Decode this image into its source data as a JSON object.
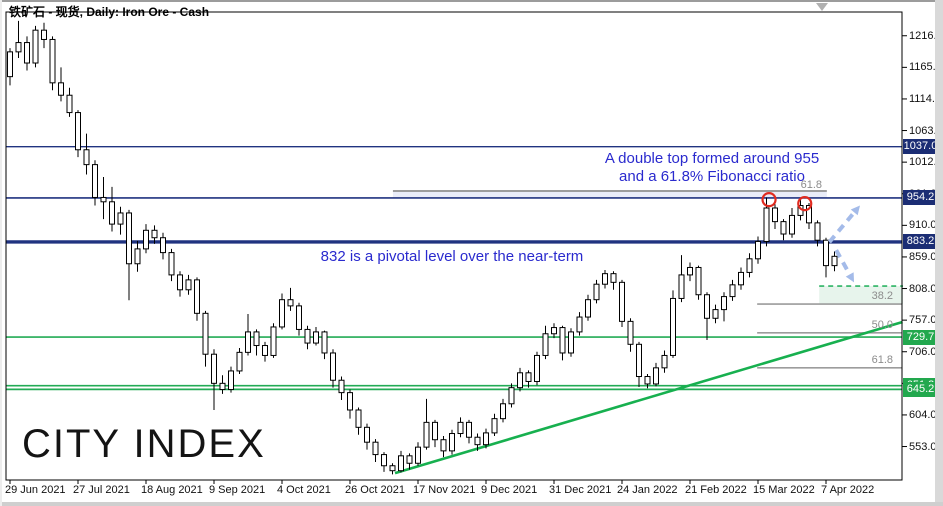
{
  "window": {
    "title": "铁矿石 - 现货, Daily:  Iron Ore - Cash"
  },
  "watermark": "CITY INDEX",
  "annotations": {
    "double_top_line1": "A double top formed around 955",
    "double_top_line2": "and a 61.8% Fibonacci ratio",
    "pivot": "832 is a pivotal level over the near-term"
  },
  "colors": {
    "line_navy": "#203380",
    "badge_navy": "#1b2d74",
    "line_green": "#22ab55",
    "badge_green": "#22a84e",
    "trend_green": "#17b04f",
    "dashed_green": "#2db464",
    "fib_gray": "#9c9c9c",
    "label_gray": "#8c8c8c",
    "annotation_blue": "#2a2ace",
    "arrow_blue": "#a4bbe9",
    "circle_red": "#e02b20",
    "shade_green": "#e7f4ec",
    "shade_blue": "#e9ecf8",
    "candle_stroke": "#000000",
    "candle_fill": "#ffffff"
  },
  "price_axis": {
    "ticks": [
      1216.0,
      1165.0,
      1114.0,
      1063.0,
      1012.0,
      961.0,
      910.0,
      859.0,
      808.0,
      757.0,
      706.0,
      655.0,
      604.0,
      553.0
    ],
    "badges": [
      {
        "label": "1037.0",
        "price": 1037.0,
        "style": "navy"
      },
      {
        "label": "954.2",
        "price": 954.2,
        "style": "navy"
      },
      {
        "label": "883.2",
        "price": 883.2,
        "style": "navy"
      },
      {
        "label": "729.7",
        "price": 729.7,
        "style": "green"
      },
      {
        "label": "651.2",
        "price": 651.2,
        "style": "green"
      },
      {
        "label": "645.2",
        "price": 645.2,
        "style": "green"
      }
    ]
  },
  "levels": [
    {
      "price": 1037.0,
      "color": "navy",
      "width": 1.4
    },
    {
      "price": 954.2,
      "color": "navy",
      "width": 1.7
    },
    {
      "price": 883.2,
      "color": "navy",
      "width": 3.4
    },
    {
      "price": 729.7,
      "color": "green",
      "width": 1.7
    },
    {
      "price": 651.2,
      "color": "green",
      "width": 1.7
    },
    {
      "price": 645.2,
      "color": "green",
      "width": 1.7
    }
  ],
  "fib_upper": {
    "label": "61.8",
    "price": 965.5,
    "from_bar": 45.05,
    "to_bar": 96.1
  },
  "fib_lower": {
    "from_bar": 87.9,
    "levels": [
      {
        "label": "38.2",
        "price": 783.0
      },
      {
        "label": "50.0",
        "price": 736.5
      },
      {
        "label": "61.8",
        "price": 680.0
      }
    ]
  },
  "target_zone": {
    "top_price": 812.0,
    "bottom_price": 783.0,
    "from_bar": 95.2
  },
  "trendline": {
    "from": {
      "bar": 45.3,
      "price": 510.0
    },
    "to": {
      "bar": 105.0,
      "price": 754.0
    }
  },
  "double_top_circles": [
    {
      "bar": 89.3,
      "price": 951.5
    },
    {
      "bar": 93.5,
      "price": 945.0
    }
  ],
  "arrows": [
    {
      "dir": "up",
      "from": {
        "bar": 96.4,
        "price": 883.0
      },
      "to": {
        "bar": 100.0,
        "price": 942.0
      }
    },
    {
      "dir": "down",
      "from": {
        "bar": 97.2,
        "price": 870.0
      },
      "to": {
        "bar": 99.3,
        "price": 818.0
      }
    }
  ],
  "chart_data": {
    "type": "candlestick",
    "symbol": "Iron Ore - Cash",
    "period": "Daily",
    "title": "铁矿石 - 现货, Daily:  Iron Ore - Cash",
    "ylim": [
      499,
      1254
    ],
    "price_tick_step": 51,
    "grid": false,
    "x_tick_labels": [
      "29 Jun 2021",
      "27 Jul 2021",
      "18 Aug 2021",
      "9 Sep 2021",
      "4 Oct 2021",
      "26 Oct 2021",
      "17 Nov 2021",
      "9 Dec 2021",
      "31 Dec 2021",
      "24 Jan 2022",
      "21 Feb 2022",
      "15 Mar 2022",
      "7 Apr 2022"
    ],
    "bars_per_label": 8,
    "candles": [
      [
        1150,
        1196,
        1136,
        1190
      ],
      [
        1190,
        1240,
        1180,
        1205
      ],
      [
        1205,
        1215,
        1160,
        1172
      ],
      [
        1172,
        1232,
        1165,
        1225
      ],
      [
        1225,
        1237,
        1196,
        1210
      ],
      [
        1210,
        1215,
        1128,
        1140
      ],
      [
        1140,
        1165,
        1110,
        1120
      ],
      [
        1120,
        1132,
        1085,
        1092
      ],
      [
        1092,
        1096,
        1020,
        1032
      ],
      [
        1032,
        1058,
        992,
        1008
      ],
      [
        1008,
        1015,
        942,
        955
      ],
      [
        955,
        988,
        920,
        948
      ],
      [
        948,
        972,
        900,
        912
      ],
      [
        912,
        940,
        895,
        930
      ],
      [
        930,
        935,
        789,
        848
      ],
      [
        848,
        885,
        835,
        872
      ],
      [
        872,
        912,
        865,
        902
      ],
      [
        902,
        910,
        880,
        890
      ],
      [
        890,
        898,
        855,
        866
      ],
      [
        866,
        872,
        820,
        830
      ],
      [
        830,
        836,
        795,
        806
      ],
      [
        806,
        830,
        798,
        822
      ],
      [
        822,
        826,
        756,
        768
      ],
      [
        768,
        772,
        682,
        702
      ],
      [
        702,
        710,
        612,
        655
      ],
      [
        655,
        668,
        638,
        645
      ],
      [
        645,
        682,
        640,
        675
      ],
      [
        675,
        712,
        670,
        705
      ],
      [
        705,
        767,
        700,
        738
      ],
      [
        738,
        742,
        700,
        716
      ],
      [
        716,
        722,
        690,
        700
      ],
      [
        700,
        752,
        696,
        746
      ],
      [
        746,
        800,
        742,
        790
      ],
      [
        790,
        809,
        772,
        780
      ],
      [
        780,
        785,
        732,
        742
      ],
      [
        742,
        748,
        710,
        720
      ],
      [
        720,
        746,
        716,
        738
      ],
      [
        738,
        740,
        694,
        704
      ],
      [
        704,
        710,
        648,
        660
      ],
      [
        660,
        666,
        628,
        640
      ],
      [
        640,
        645,
        598,
        612
      ],
      [
        612,
        616,
        572,
        584
      ],
      [
        584,
        590,
        548,
        560
      ],
      [
        560,
        565,
        528,
        540
      ],
      [
        540,
        544,
        512,
        522
      ],
      [
        522,
        526,
        508,
        514
      ],
      [
        514,
        546,
        511,
        538
      ],
      [
        538,
        542,
        516,
        526
      ],
      [
        526,
        560,
        522,
        552
      ],
      [
        552,
        630,
        548,
        592
      ],
      [
        592,
        596,
        552,
        564
      ],
      [
        564,
        570,
        536,
        546
      ],
      [
        546,
        580,
        540,
        574
      ],
      [
        574,
        600,
        568,
        592
      ],
      [
        592,
        596,
        558,
        568
      ],
      [
        568,
        574,
        546,
        556
      ],
      [
        556,
        582,
        550,
        575
      ],
      [
        575,
        606,
        570,
        598
      ],
      [
        598,
        630,
        592,
        622
      ],
      [
        622,
        655,
        616,
        648
      ],
      [
        648,
        680,
        642,
        672
      ],
      [
        672,
        676,
        648,
        658
      ],
      [
        658,
        706,
        652,
        700
      ],
      [
        700,
        748,
        694,
        735
      ],
      [
        735,
        752,
        728,
        745
      ],
      [
        745,
        748,
        692,
        704
      ],
      [
        704,
        744,
        698,
        738
      ],
      [
        738,
        770,
        732,
        762
      ],
      [
        762,
        798,
        756,
        790
      ],
      [
        790,
        822,
        784,
        815
      ],
      [
        815,
        838,
        808,
        832
      ],
      [
        832,
        836,
        806,
        818
      ],
      [
        818,
        822,
        746,
        755
      ],
      [
        755,
        760,
        706,
        718
      ],
      [
        718,
        722,
        649,
        666
      ],
      [
        666,
        670,
        647,
        654
      ],
      [
        654,
        688,
        650,
        680
      ],
      [
        680,
        708,
        672,
        700
      ],
      [
        700,
        805,
        696,
        792
      ],
      [
        792,
        862,
        786,
        830
      ],
      [
        830,
        850,
        820,
        842
      ],
      [
        842,
        845,
        790,
        798
      ],
      [
        798,
        802,
        725,
        760
      ],
      [
        760,
        782,
        752,
        774
      ],
      [
        774,
        802,
        755,
        795
      ],
      [
        795,
        822,
        788,
        814
      ],
      [
        814,
        842,
        806,
        834
      ],
      [
        834,
        865,
        826,
        856
      ],
      [
        856,
        892,
        848,
        884
      ],
      [
        884,
        955,
        876,
        938
      ],
      [
        938,
        944,
        904,
        916
      ],
      [
        916,
        920,
        886,
        896
      ],
      [
        896,
        938,
        890,
        926
      ],
      [
        926,
        953,
        918,
        942
      ],
      [
        942,
        946,
        904,
        914
      ],
      [
        914,
        918,
        876,
        886
      ],
      [
        886,
        890,
        826,
        845
      ],
      [
        845,
        868,
        836,
        860
      ]
    ]
  }
}
